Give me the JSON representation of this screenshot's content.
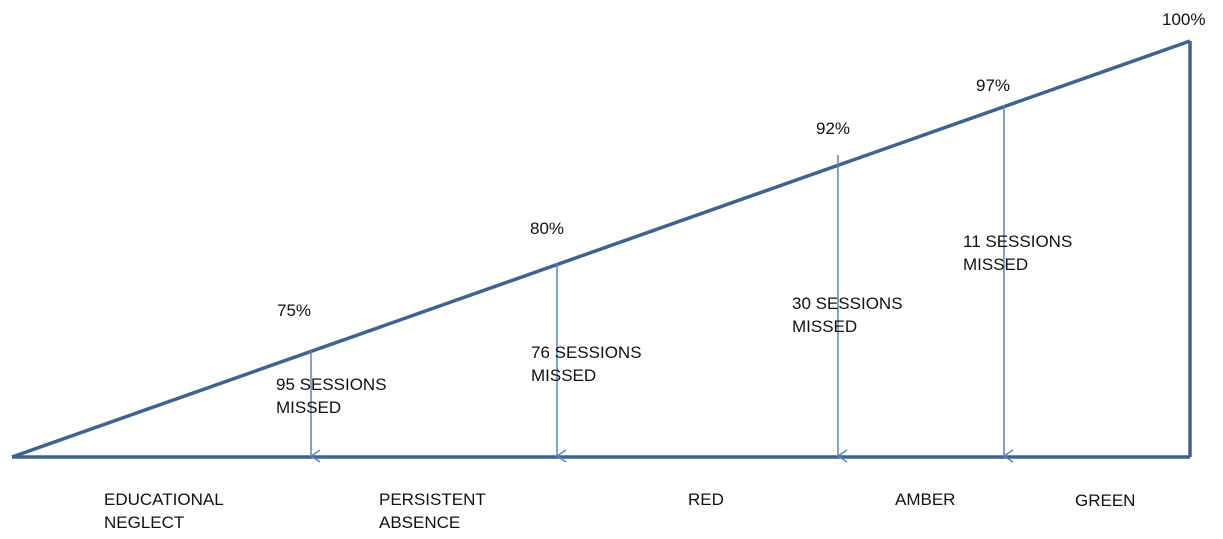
{
  "colors": {
    "line": "#41628f",
    "arrow": "#5b86c0",
    "text": "#111111"
  },
  "markers": [
    {
      "percent": "100%"
    },
    {
      "percent": "97%",
      "sessions_line1": "11 SESSIONS",
      "sessions_line2": "MISSED"
    },
    {
      "percent": "92%",
      "sessions_line1": "30 SESSIONS",
      "sessions_line2": "MISSED"
    },
    {
      "percent": "80%",
      "sessions_line1": "76 SESSIONS",
      "sessions_line2": "MISSED"
    },
    {
      "percent": "75%",
      "sessions_line1": "95 SESSIONS",
      "sessions_line2": "MISSED"
    }
  ],
  "zones": [
    {
      "line1": "EDUCATIONAL",
      "line2": "NEGLECT"
    },
    {
      "line1": "PERSISTENT",
      "line2": "ABSENCE"
    },
    {
      "line1": "RED"
    },
    {
      "line1": "AMBER"
    },
    {
      "line1": "GREEN"
    }
  ]
}
